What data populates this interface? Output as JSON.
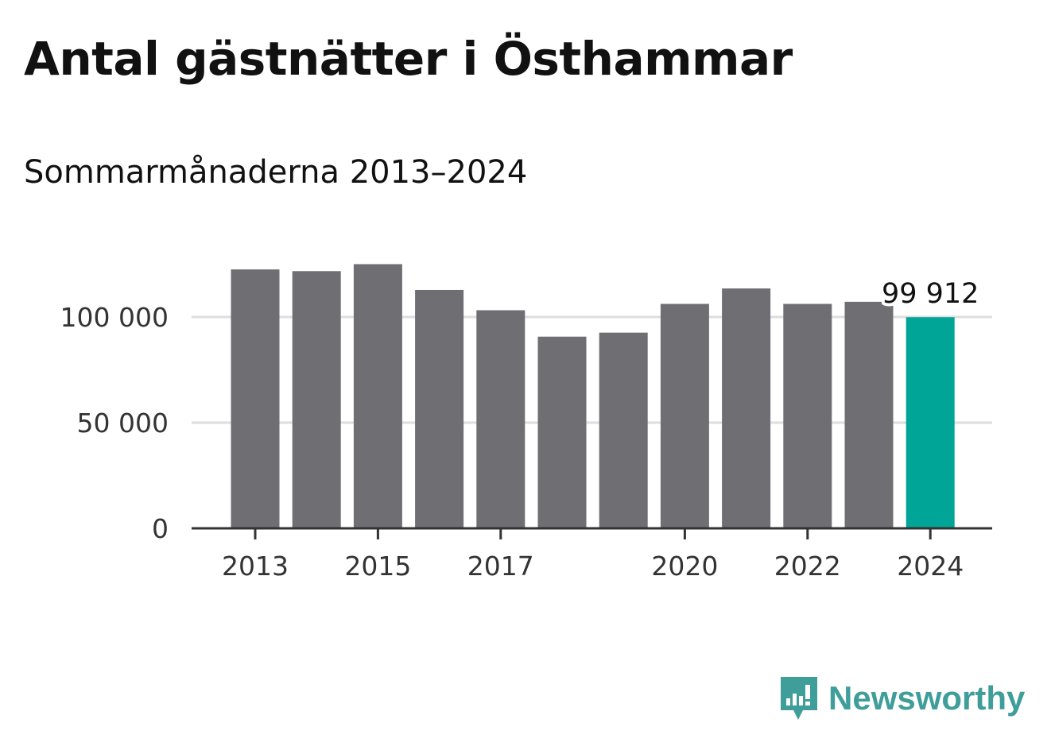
{
  "title": "Antal gästnätter i Östhammar",
  "subtitle": "Sommarmånaderna 2013–2024",
  "brand": {
    "name": "Newsworthy",
    "icon": "newsworthy-logo-icon",
    "color": "#3f9e9a"
  },
  "colors": {
    "bar": "#6f6e73",
    "highlight": "#00a597",
    "grid": "#dedede",
    "axis": "#333333"
  },
  "chart_data": {
    "type": "bar",
    "title": "Antal gästnätter i Östhammar",
    "subtitle": "Sommarmånaderna 2013–2024",
    "categories": [
      "2013",
      "2014",
      "2015",
      "2016",
      "2017",
      "2018",
      "2019",
      "2020",
      "2021",
      "2022",
      "2023",
      "2024"
    ],
    "values": [
      122500,
      121700,
      125000,
      112800,
      103200,
      90700,
      92600,
      106200,
      113500,
      106200,
      107200,
      99912
    ],
    "highlight_index": 11,
    "data_labels": [
      {
        "index": 11,
        "text": "99 912"
      }
    ],
    "x_tick_labels": [
      "2013",
      "2015",
      "2017",
      "2020",
      "2022",
      "2024"
    ],
    "y_ticks": [
      0,
      50000,
      100000
    ],
    "y_tick_labels": [
      "0",
      "50 000",
      "100 000"
    ],
    "ylim": [
      0,
      130000
    ],
    "xlabel": "",
    "ylabel": "",
    "grid": true,
    "legend": "none"
  }
}
